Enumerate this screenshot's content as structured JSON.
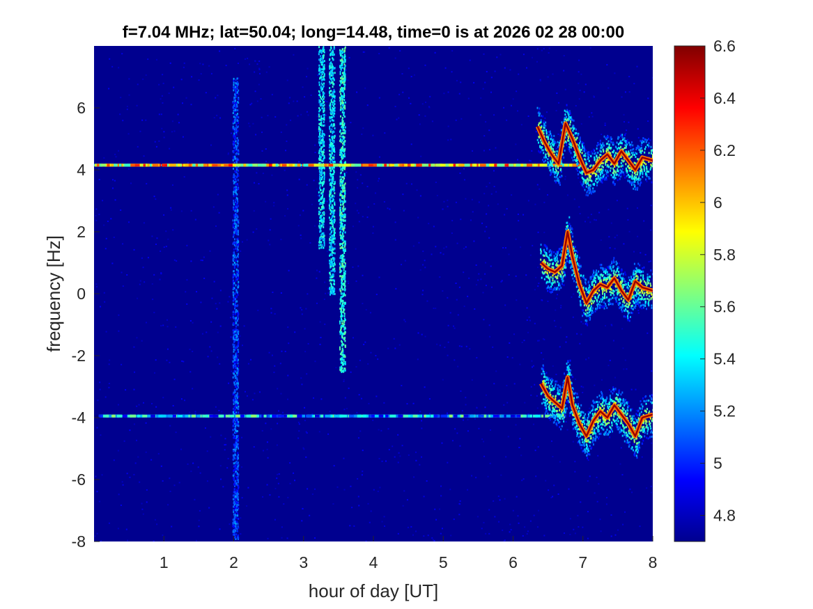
{
  "chart_data": {
    "type": "heatmap",
    "title": "f=7.04 MHz;  lat=50.04; long=14.48, time=0 is at 2026 02 28 00:00",
    "xlabel": "hour of day [UT]",
    "ylabel": "frequency [Hz]",
    "xlim": [
      0,
      8
    ],
    "ylim": [
      -8,
      8
    ],
    "x_ticks": [
      1,
      2,
      3,
      4,
      5,
      6,
      7,
      8
    ],
    "x_tick_labels": [
      "1",
      "2",
      "3",
      "4",
      "5",
      "6",
      "7",
      "8"
    ],
    "y_ticks": [
      -8,
      -6,
      -4,
      -2,
      0,
      2,
      4,
      6
    ],
    "y_tick_labels": [
      "-8",
      "-6",
      "-4",
      "-2",
      "0",
      "2",
      "4",
      "6"
    ],
    "colorbar": {
      "range": [
        4.7,
        6.6
      ],
      "ticks": [
        4.8,
        5,
        5.2,
        5.4,
        5.6,
        5.8,
        6,
        6.2,
        6.4,
        6.6
      ],
      "tick_labels": [
        "4.8",
        "5",
        "5.2",
        "5.4",
        "5.6",
        "5.8",
        "6",
        "6.2",
        "6.4",
        "6.6"
      ],
      "colormap": "jet"
    },
    "background_level": 4.75,
    "features": {
      "horizontal_lines": [
        {
          "y": 4.15,
          "x_start": 0.0,
          "x_end": 6.9,
          "level": 5.9
        },
        {
          "y": -3.95,
          "x_start": 0.0,
          "x_end": 6.7,
          "level": 5.25
        }
      ],
      "vertical_bands": [
        {
          "x": 2.02,
          "y_min": -7.9,
          "y_max": 7.0,
          "level": 5.0
        },
        {
          "x": 3.25,
          "y_min": 1.5,
          "y_max": 8.0,
          "level": 5.3
        },
        {
          "x": 3.4,
          "y_min": 0.0,
          "y_max": 8.0,
          "level": 5.3
        },
        {
          "x": 3.55,
          "y_min": -2.5,
          "y_max": 8.0,
          "level": 5.4
        }
      ],
      "doppler_traces": [
        {
          "center_offset": 4.15,
          "points": [
            [
              6.35,
              5.4
            ],
            [
              6.45,
              4.9
            ],
            [
              6.55,
              4.5
            ],
            [
              6.65,
              4.2
            ],
            [
              6.75,
              5.5
            ],
            [
              6.85,
              5.0
            ],
            [
              6.95,
              4.4
            ],
            [
              7.05,
              3.9
            ],
            [
              7.15,
              4.0
            ],
            [
              7.25,
              4.3
            ],
            [
              7.35,
              4.5
            ],
            [
              7.45,
              4.2
            ],
            [
              7.55,
              4.6
            ],
            [
              7.65,
              4.3
            ],
            [
              7.75,
              4.0
            ],
            [
              7.85,
              4.4
            ],
            [
              8.0,
              4.3
            ]
          ]
        },
        {
          "center_offset": 0.0,
          "points": [
            [
              6.4,
              1.0
            ],
            [
              6.5,
              0.8
            ],
            [
              6.6,
              0.7
            ],
            [
              6.7,
              0.9
            ],
            [
              6.78,
              2.0
            ],
            [
              6.85,
              1.2
            ],
            [
              6.95,
              0.3
            ],
            [
              7.05,
              -0.3
            ],
            [
              7.15,
              0.1
            ],
            [
              7.25,
              0.3
            ],
            [
              7.35,
              0.2
            ],
            [
              7.45,
              0.5
            ],
            [
              7.55,
              0.1
            ],
            [
              7.65,
              -0.2
            ],
            [
              7.75,
              0.4
            ],
            [
              7.85,
              0.2
            ],
            [
              8.0,
              0.1
            ]
          ]
        },
        {
          "center_offset": -3.95,
          "points": [
            [
              6.4,
              -2.9
            ],
            [
              6.5,
              -3.3
            ],
            [
              6.6,
              -3.5
            ],
            [
              6.7,
              -3.7
            ],
            [
              6.78,
              -2.7
            ],
            [
              6.85,
              -3.6
            ],
            [
              6.95,
              -4.2
            ],
            [
              7.05,
              -4.6
            ],
            [
              7.15,
              -4.1
            ],
            [
              7.25,
              -3.8
            ],
            [
              7.35,
              -4.0
            ],
            [
              7.45,
              -3.6
            ],
            [
              7.55,
              -3.9
            ],
            [
              7.65,
              -4.2
            ],
            [
              7.75,
              -4.6
            ],
            [
              7.85,
              -4.0
            ],
            [
              8.0,
              -3.9
            ]
          ]
        }
      ]
    }
  }
}
